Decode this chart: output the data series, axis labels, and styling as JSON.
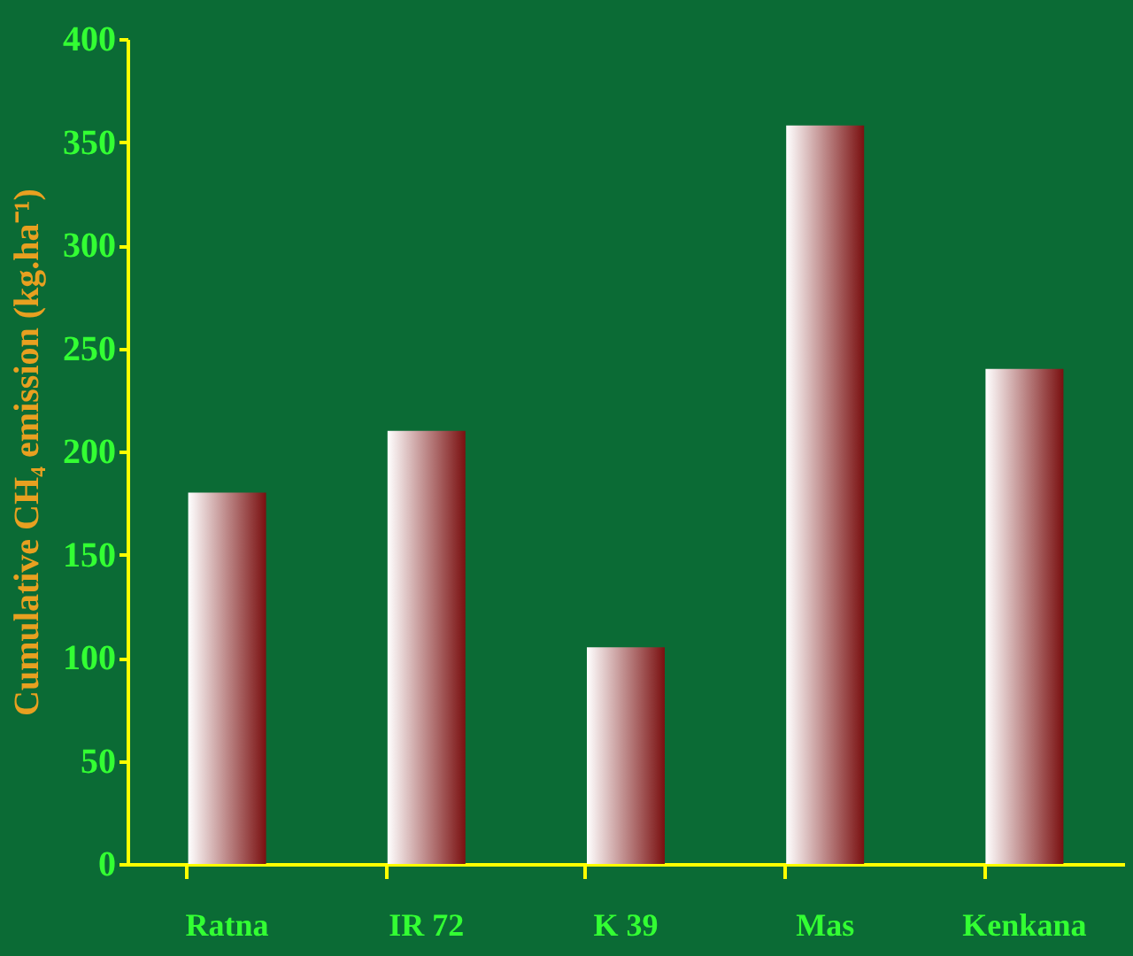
{
  "chart_data": {
    "type": "bar",
    "ylabel": "Cumulative CH₄ emission (kg.ha⁻¹)",
    "categories": [
      "Ratna",
      "IR 72",
      "K 39",
      "Mas",
      "Kenkana"
    ],
    "values": [
      180,
      210,
      105,
      358,
      240
    ],
    "color": "#7a1010",
    "ylim": [
      0,
      400
    ],
    "yticks": [
      0,
      50,
      100,
      150,
      200,
      250,
      300,
      350,
      400
    ],
    "grid": false
  }
}
